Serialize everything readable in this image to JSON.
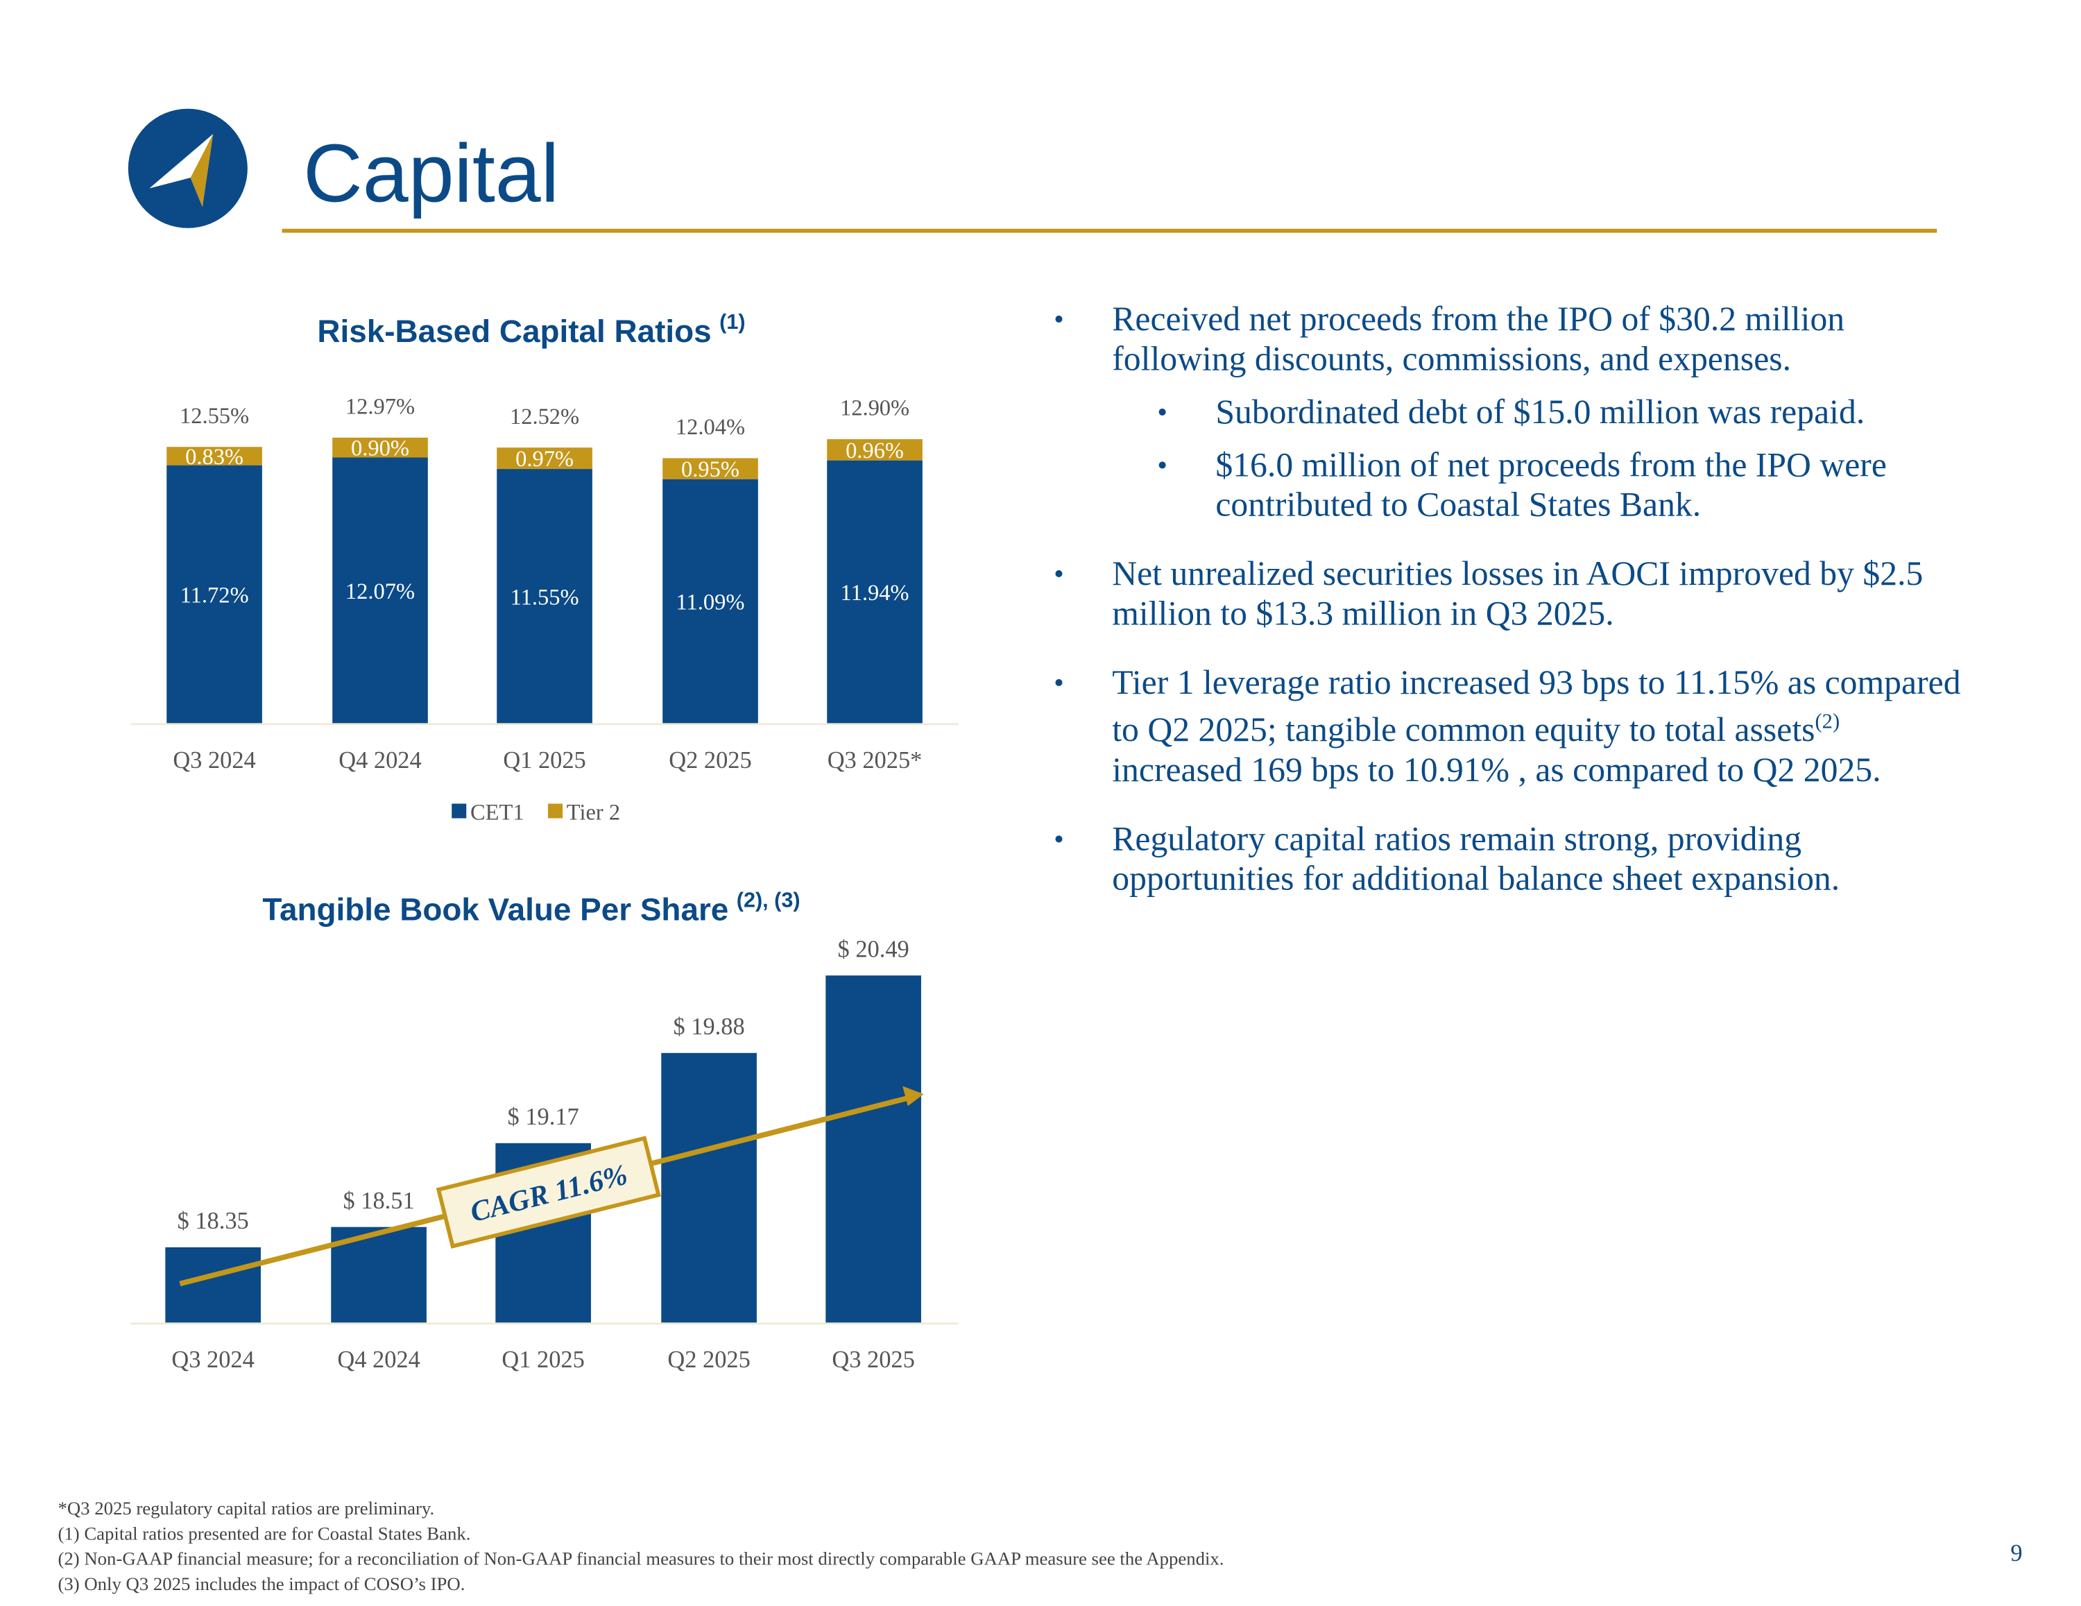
{
  "header": {
    "title": "Capital"
  },
  "chart_data": [
    {
      "type": "stacked_bar",
      "title": "Risk-Based Capital Ratios",
      "title_note": "(1)",
      "categories": [
        "Q3 2024",
        "Q4 2024",
        "Q1 2025",
        "Q2 2025",
        "Q3 2025*"
      ],
      "series": [
        {
          "name": "CET1",
          "color": "#0b4a87",
          "values": [
            11.72,
            12.07,
            11.55,
            11.09,
            11.94
          ],
          "value_labels": [
            "11.72%",
            "12.07%",
            "11.55%",
            "11.09%",
            "11.94%"
          ]
        },
        {
          "name": "Tier 2",
          "color": "#c4961a",
          "values": [
            0.83,
            0.9,
            0.97,
            0.95,
            0.96
          ],
          "value_labels": [
            "0.83%",
            "0.90%",
            "0.97%",
            "0.95%",
            "0.96%"
          ]
        }
      ],
      "total_labels": [
        "12.55%",
        "12.97%",
        "12.52%",
        "12.04%",
        "12.90%"
      ],
      "ylim": [
        0,
        13
      ],
      "legend": "bottom"
    },
    {
      "type": "bar",
      "title": "Tangible Book Value Per Share",
      "title_note": "(2), (3)",
      "categories": [
        "Q3 2024",
        "Q4 2024",
        "Q1 2025",
        "Q2 2025",
        "Q3 2025"
      ],
      "values": [
        18.35,
        18.51,
        19.17,
        19.88,
        20.49
      ],
      "value_labels": [
        "$ 18.35",
        "$ 18.51",
        "$ 19.17",
        "$ 19.88",
        "$ 20.49"
      ],
      "color": "#0b4a87",
      "ylim": [
        17.75,
        20.5
      ],
      "annotation": "CAGR 11.6%"
    }
  ],
  "bullets": [
    {
      "text": "Received net proceeds from the IPO of $30.2 million following discounts, commissions, and expenses.",
      "sub": [
        "Subordinated debt of $15.0 million was repaid.",
        "$16.0 million of net proceeds from the IPO were contributed to Coastal States Bank."
      ]
    },
    {
      "text": "Net unrealized securities losses in AOCI improved by $2.5 million to $13.3 million in Q3 2025."
    },
    {
      "text": "Tier 1 leverage ratio increased 93 bps to 11.15% as compared to Q2 2025; tangible common equity to total assets",
      "sup": "(2)",
      "text_after": " increased 169 bps to 10.91% , as compared to Q2 2025."
    },
    {
      "text": "Regulatory capital ratios remain strong, providing opportunities for additional balance sheet expansion."
    }
  ],
  "footnotes": [
    "*Q3 2025 regulatory capital ratios are preliminary.",
    "(1) Capital ratios presented are for Coastal States Bank.",
    "(2) Non-GAAP financial measure; for a reconciliation of Non-GAAP financial measures to their most directly comparable GAAP measure see the Appendix.",
    "(3) Only Q3 2025 includes the impact of COSO’s IPO."
  ],
  "page_number": "9"
}
